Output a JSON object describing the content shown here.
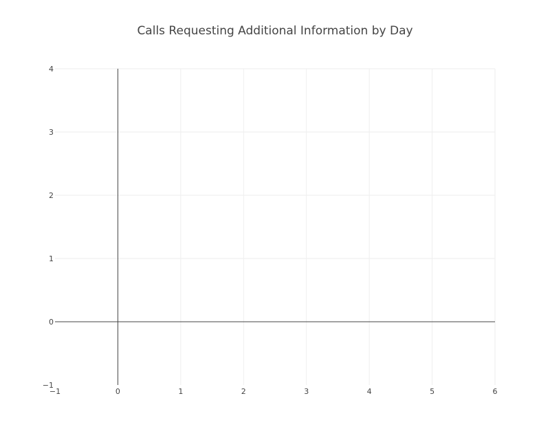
{
  "chart_data": {
    "type": "line",
    "title": "Calls Requesting Additional Information by Day",
    "xlabel": "",
    "ylabel": "",
    "xlim": [
      -1,
      6
    ],
    "ylim": [
      -1,
      4
    ],
    "x_ticks": [
      -1,
      0,
      1,
      2,
      3,
      4,
      5,
      6
    ],
    "y_ticks": [
      -1,
      0,
      1,
      2,
      3,
      4
    ],
    "x_tick_labels": [
      "−1",
      "0",
      "1",
      "2",
      "3",
      "4",
      "5",
      "6"
    ],
    "y_tick_labels": [
      "−1",
      "0",
      "1",
      "2",
      "3",
      "4"
    ],
    "series": [],
    "grid": true,
    "legend": "none",
    "colors": {
      "text": "#444444",
      "grid": "#eeeeee",
      "zero_line": "#444444",
      "background": "#ffffff"
    }
  }
}
